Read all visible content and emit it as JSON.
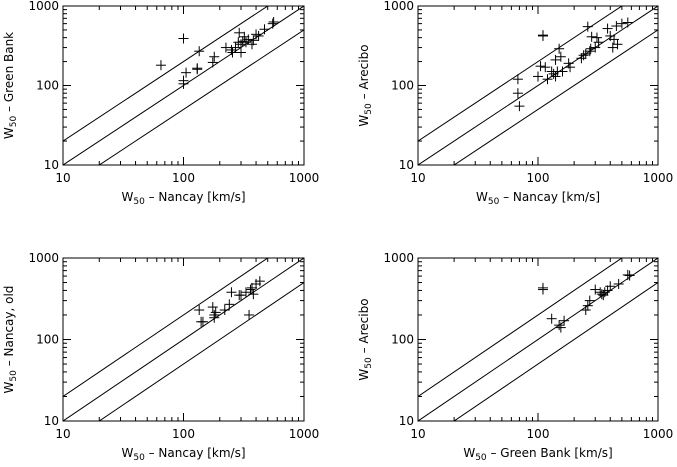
{
  "chart_data": [
    {
      "type": "scatter",
      "panel": "top-left",
      "xlabel_main": "W",
      "xlabel_sub": "50",
      "xlabel_rest": " – Nancay [km/s]",
      "ylabel_main": "W",
      "ylabel_sub": "50",
      "ylabel_rest": " – Green Bank",
      "xscale": "log",
      "yscale": "log",
      "xlim": [
        10,
        1000
      ],
      "ylim": [
        10,
        1000
      ],
      "xticks": [
        "10",
        "100",
        "1000"
      ],
      "yticks": [
        "10",
        "100",
        "1000"
      ],
      "reference_lines": [
        {
          "slope": 1,
          "factor": 0.5
        },
        {
          "slope": 1,
          "factor": 1
        },
        {
          "slope": 1,
          "factor": 2
        }
      ],
      "points": [
        [
          65,
          180
        ],
        [
          100,
          390
        ],
        [
          100,
          115
        ],
        [
          100,
          105
        ],
        [
          105,
          145
        ],
        [
          130,
          160
        ],
        [
          130,
          165
        ],
        [
          135,
          270
        ],
        [
          175,
          195
        ],
        [
          180,
          230
        ],
        [
          225,
          300
        ],
        [
          250,
          280
        ],
        [
          255,
          260
        ],
        [
          270,
          300
        ],
        [
          285,
          350
        ],
        [
          290,
          460
        ],
        [
          300,
          260
        ],
        [
          300,
          330
        ],
        [
          310,
          360
        ],
        [
          320,
          410
        ],
        [
          330,
          350
        ],
        [
          345,
          380
        ],
        [
          370,
          330
        ],
        [
          380,
          370
        ],
        [
          400,
          440
        ],
        [
          420,
          420
        ],
        [
          470,
          510
        ],
        [
          550,
          600
        ],
        [
          560,
          630
        ]
      ]
    },
    {
      "type": "scatter",
      "panel": "top-right",
      "xlabel_main": "W",
      "xlabel_sub": "50",
      "xlabel_rest": " – Nancay [km/s]",
      "ylabel_main": "W",
      "ylabel_sub": "50",
      "ylabel_rest": " – Arecibo",
      "xscale": "log",
      "yscale": "log",
      "xlim": [
        10,
        1000
      ],
      "ylim": [
        10,
        1000
      ],
      "xticks": [
        "10",
        "100",
        "1000"
      ],
      "yticks": [
        "10",
        "100",
        "1000"
      ],
      "reference_lines": [
        {
          "slope": 1,
          "factor": 0.5
        },
        {
          "slope": 1,
          "factor": 1
        },
        {
          "slope": 1,
          "factor": 2
        }
      ],
      "points": [
        [
          68,
          120
        ],
        [
          68,
          80
        ],
        [
          70,
          55
        ],
        [
          100,
          130
        ],
        [
          105,
          175
        ],
        [
          110,
          430
        ],
        [
          110,
          420
        ],
        [
          115,
          170
        ],
        [
          120,
          120
        ],
        [
          130,
          150
        ],
        [
          135,
          140
        ],
        [
          140,
          130
        ],
        [
          140,
          210
        ],
        [
          145,
          150
        ],
        [
          150,
          290
        ],
        [
          155,
          230
        ],
        [
          160,
          150
        ],
        [
          180,
          190
        ],
        [
          185,
          170
        ],
        [
          230,
          220
        ],
        [
          240,
          240
        ],
        [
          250,
          250
        ],
        [
          260,
          550
        ],
        [
          270,
          270
        ],
        [
          275,
          290
        ],
        [
          280,
          410
        ],
        [
          300,
          300
        ],
        [
          310,
          400
        ],
        [
          320,
          350
        ],
        [
          380,
          520
        ],
        [
          400,
          420
        ],
        [
          420,
          300
        ],
        [
          430,
          380
        ],
        [
          450,
          560
        ],
        [
          460,
          330
        ],
        [
          500,
          600
        ],
        [
          560,
          620
        ]
      ]
    },
    {
      "type": "scatter",
      "panel": "bottom-left",
      "xlabel_main": "W",
      "xlabel_sub": "50",
      "xlabel_rest": " – Nancay [km/s]",
      "ylabel_main": "W",
      "ylabel_sub": "50",
      "ylabel_rest": " – Nancay, old",
      "xscale": "log",
      "yscale": "log",
      "xlim": [
        10,
        1000
      ],
      "ylim": [
        10,
        1000
      ],
      "xticks": [
        "10",
        "100",
        "1000"
      ],
      "yticks": [
        "10",
        "100",
        "1000"
      ],
      "reference_lines": [
        {
          "slope": 1,
          "factor": 0.5
        },
        {
          "slope": 1,
          "factor": 1
        },
        {
          "slope": 1,
          "factor": 2
        }
      ],
      "points": [
        [
          135,
          230
        ],
        [
          140,
          165
        ],
        [
          145,
          165
        ],
        [
          175,
          250
        ],
        [
          180,
          200
        ],
        [
          180,
          185
        ],
        [
          185,
          215
        ],
        [
          220,
          230
        ],
        [
          240,
          270
        ],
        [
          250,
          380
        ],
        [
          290,
          350
        ],
        [
          300,
          350
        ],
        [
          330,
          380
        ],
        [
          350,
          200
        ],
        [
          360,
          410
        ],
        [
          370,
          430
        ],
        [
          380,
          360
        ],
        [
          400,
          480
        ],
        [
          430,
          520
        ]
      ]
    },
    {
      "type": "scatter",
      "panel": "bottom-right",
      "xlabel_main": "W",
      "xlabel_sub": "50",
      "xlabel_rest": " – Green Bank [km/s]",
      "ylabel_main": "W",
      "ylabel_sub": "50",
      "ylabel_rest": " – Arecibo",
      "xscale": "log",
      "yscale": "log",
      "xlim": [
        10,
        1000
      ],
      "ylim": [
        10,
        1000
      ],
      "xticks": [
        "10",
        "100",
        "1000"
      ],
      "yticks": [
        "10",
        "100",
        "1000"
      ],
      "reference_lines": [
        {
          "slope": 1,
          "factor": 0.5
        },
        {
          "slope": 1,
          "factor": 1
        },
        {
          "slope": 1,
          "factor": 2
        }
      ],
      "points": [
        [
          110,
          430
        ],
        [
          110,
          410
        ],
        [
          130,
          180
        ],
        [
          150,
          150
        ],
        [
          155,
          140
        ],
        [
          165,
          170
        ],
        [
          250,
          230
        ],
        [
          260,
          260
        ],
        [
          270,
          300
        ],
        [
          300,
          410
        ],
        [
          330,
          380
        ],
        [
          340,
          360
        ],
        [
          350,
          350
        ],
        [
          360,
          380
        ],
        [
          380,
          400
        ],
        [
          400,
          450
        ],
        [
          470,
          480
        ],
        [
          560,
          620
        ],
        [
          580,
          610
        ]
      ]
    }
  ]
}
